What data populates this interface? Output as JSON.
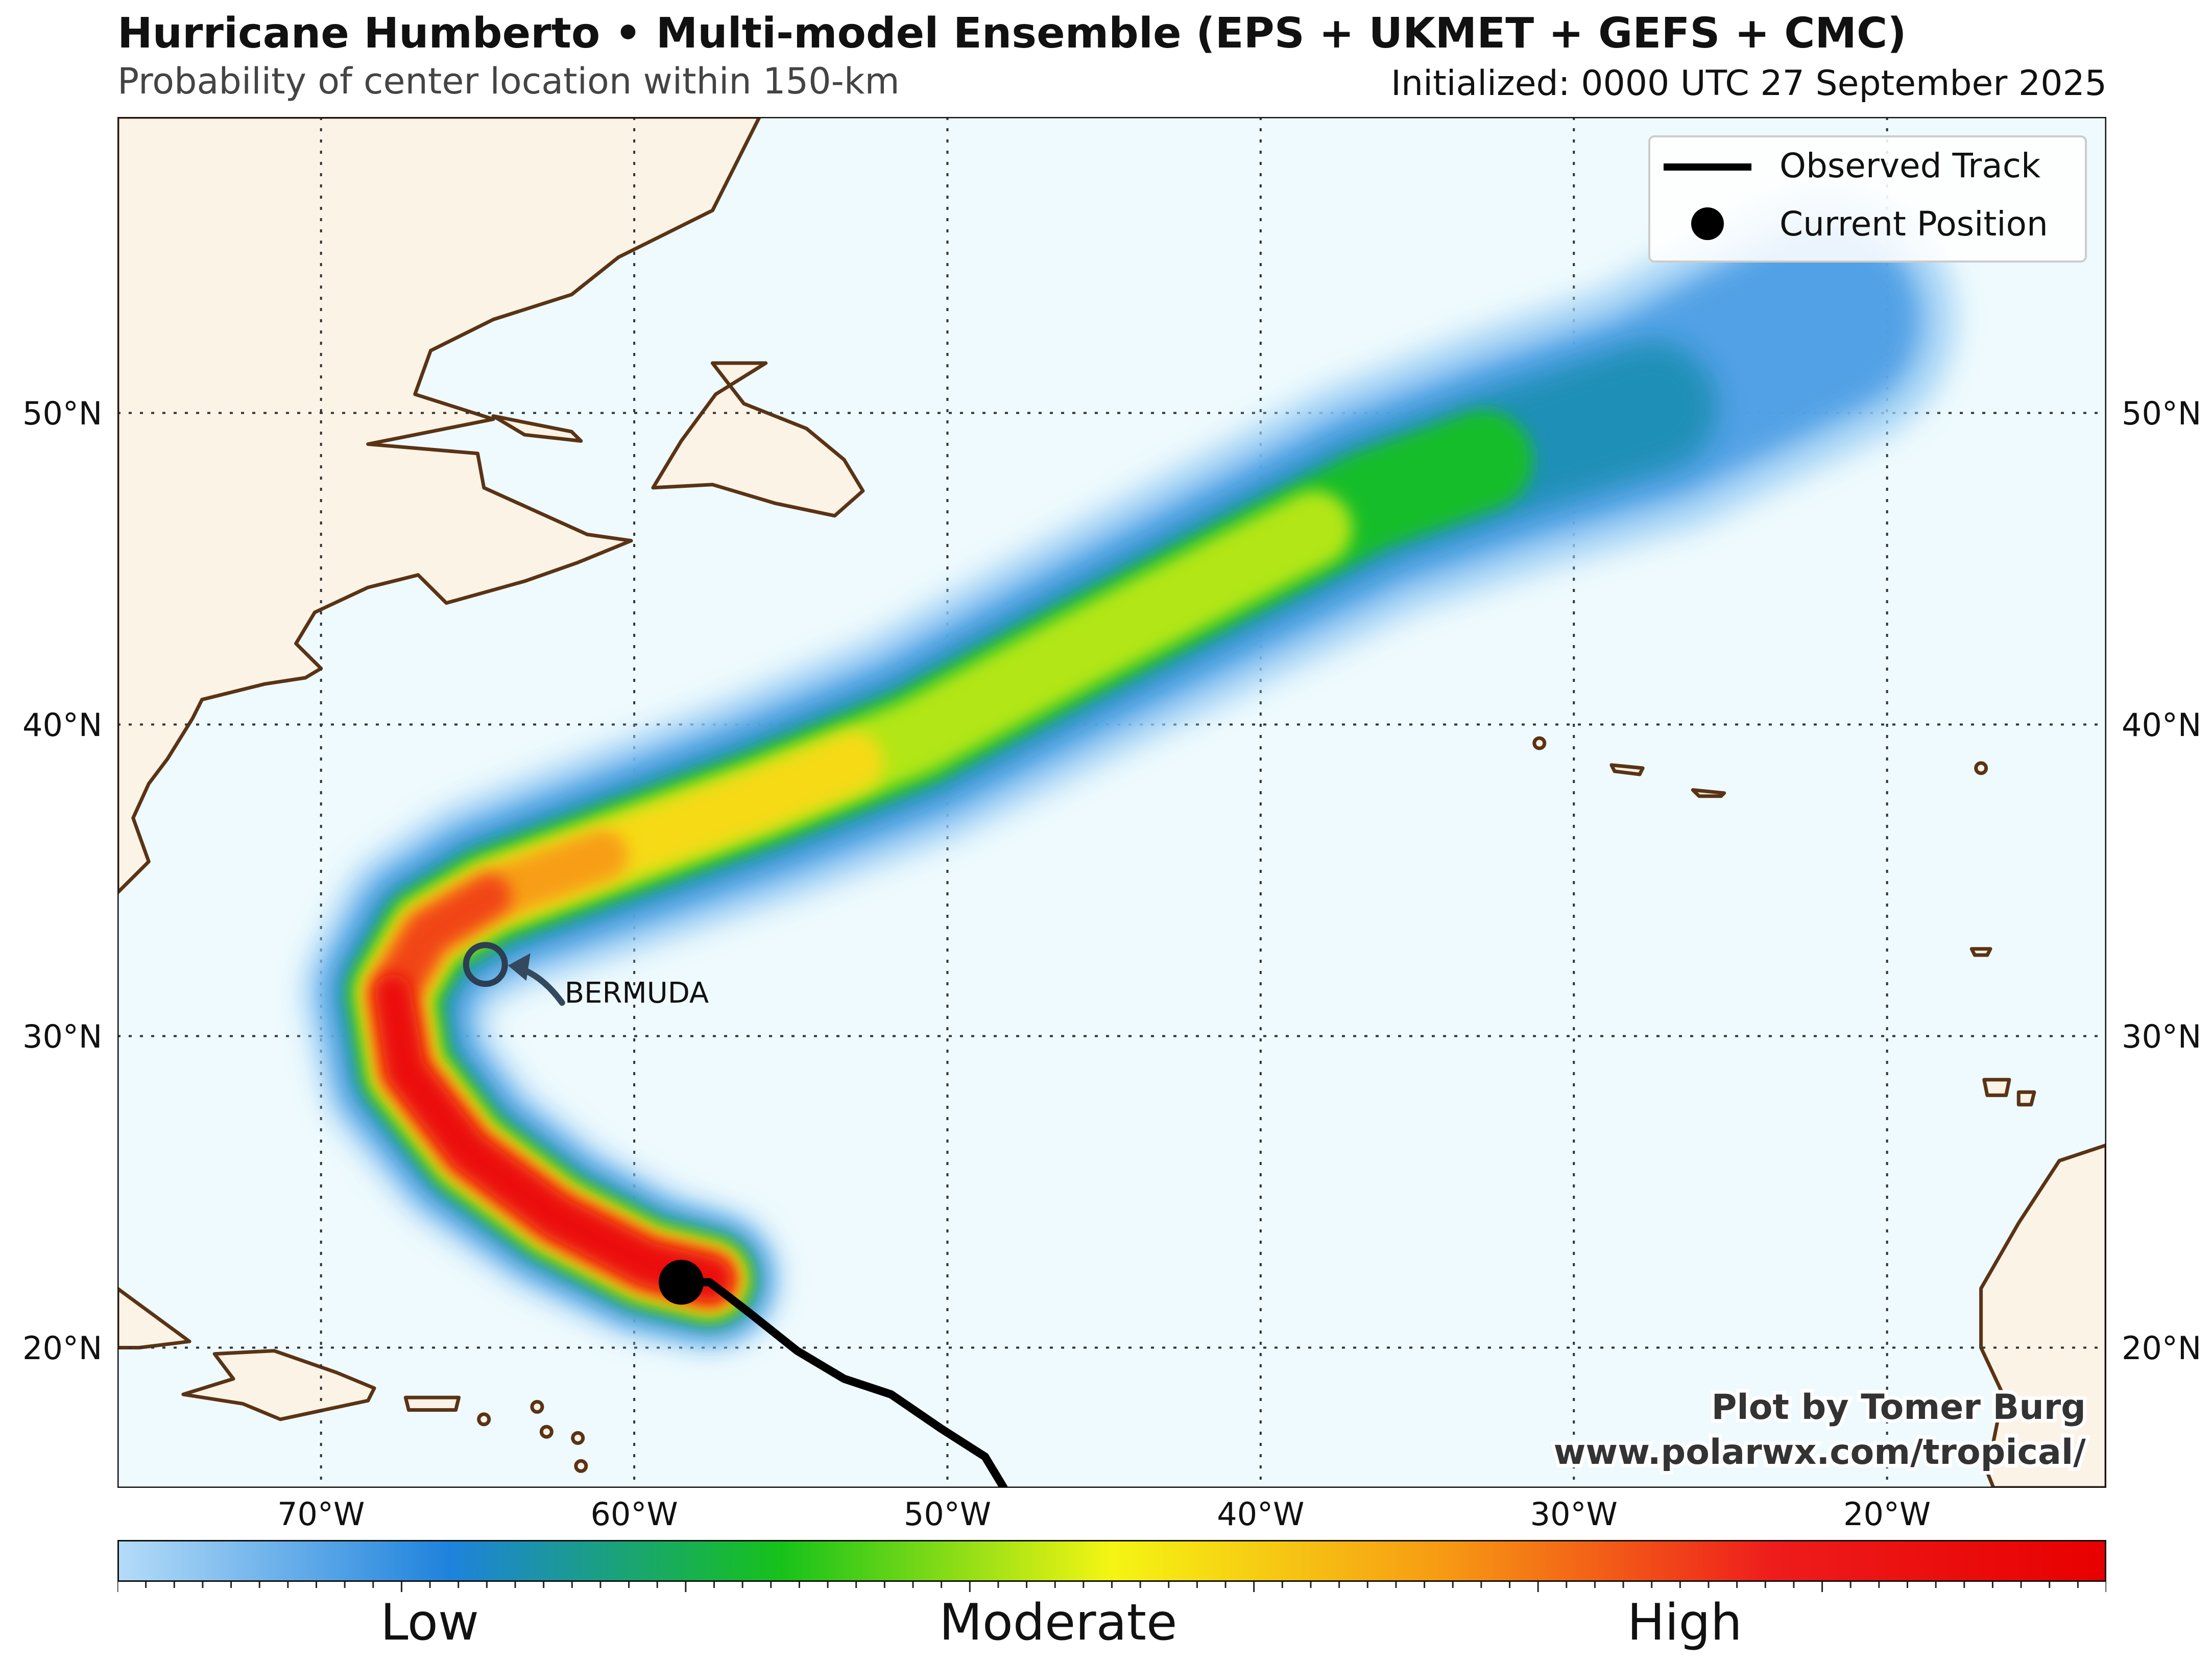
{
  "header": {
    "title": "Hurricane Humberto • Multi-model Ensemble (EPS + UKMET + GEFS + CMC)",
    "subtitle": "Probability of center location within 150-km",
    "initialized": "Initialized: 0000 UTC 27 September 2025"
  },
  "map": {
    "lon_range": [
      -76.5,
      -13.0
    ],
    "lat_range": [
      15.5,
      59.5
    ],
    "ocean_color": "#eefafd",
    "land_color": "#fbf3e6",
    "coast_color": "#5a3315",
    "gridlines": "dotted",
    "lat_ticks": [
      "20°N",
      "30°N",
      "40°N",
      "50°N"
    ],
    "lon_ticks": [
      "70°W",
      "60°W",
      "50°W",
      "40°W",
      "30°W",
      "20°W"
    ],
    "bermuda_label": "BERMUDA",
    "observed_track": [
      [
        -48.2,
        15.5
      ],
      [
        -48.8,
        16.5
      ],
      [
        -50.2,
        17.4
      ],
      [
        -51.8,
        18.5
      ],
      [
        -53.3,
        19.0
      ],
      [
        -54.8,
        19.9
      ],
      [
        -56.3,
        21.1
      ],
      [
        -57.2,
        21.8
      ],
      [
        -57.6,
        22.1
      ],
      [
        -58.5,
        22.1
      ]
    ],
    "current_position": [
      -58.5,
      22.1
    ],
    "probability_swath": {
      "centerline": [
        [
          -57.6,
          22.2
        ],
        [
          -59.6,
          22.7
        ],
        [
          -62.5,
          24.2
        ],
        [
          -65.3,
          26.3
        ],
        [
          -67.3,
          28.9
        ],
        [
          -67.7,
          31.4
        ],
        [
          -66.6,
          33.3
        ],
        [
          -64.6,
          34.5
        ],
        [
          -61.0,
          35.8
        ],
        [
          -56.0,
          37.6
        ],
        [
          -51.0,
          39.6
        ],
        [
          -46.0,
          42.3
        ],
        [
          -41.0,
          44.9
        ],
        [
          -36.5,
          47.2
        ],
        [
          -32.0,
          48.8
        ],
        [
          -27.5,
          50.2
        ],
        [
          -22.0,
          53.0
        ]
      ],
      "peak_levels": [
        1.0,
        1.0,
        1.0,
        0.97,
        0.92,
        0.85,
        0.8,
        0.72,
        0.62,
        0.55,
        0.5,
        0.48,
        0.45,
        0.4,
        0.3,
        0.22,
        0.15
      ]
    }
  },
  "legend": {
    "position": "top-right",
    "items": [
      {
        "label": "Observed Track",
        "color": "#000000"
      },
      {
        "label": "Current Position",
        "color": "#000000"
      }
    ]
  },
  "credit": {
    "line1": "Plot by Tomer Burg",
    "line2": "www.polarwx.com/tropical/"
  },
  "colorbar": {
    "colors": [
      "#b4dcf8",
      "#1e82dc",
      "#16c21a",
      "#f5f513",
      "#f79a13",
      "#ee1c1c",
      "#e80000"
    ],
    "labels": [
      "Low",
      "Moderate",
      "High"
    ]
  }
}
